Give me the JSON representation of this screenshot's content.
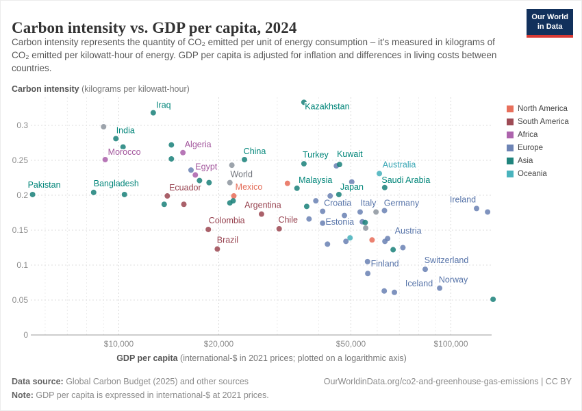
{
  "header": {
    "title": "Carbon intensity vs. GDP per capita, 2024",
    "subtitle": "Carbon intensity represents the quantity of CO₂ emitted per unit of energy consumption – it’s measured in kilograms of CO₂ emitted per kilowatt-hour of energy. GDP per capita is adjusted for inflation and differences in living costs between countries.",
    "logo": {
      "line1": "Our World",
      "line2": "in Data",
      "bg_color": "#12315c",
      "bar_color": "#d93a34"
    }
  },
  "axes": {
    "y_title_bold": "Carbon intensity",
    "y_title_rest": " (kilograms per kilowatt-hour)",
    "x_title_bold": "GDP per capita",
    "x_title_rest": " (international-$ in 2021 prices; plotted on a logarithmic axis)",
    "y_ticks": [
      {
        "value": 0,
        "label": "0"
      },
      {
        "value": 0.05,
        "label": "0.05"
      },
      {
        "value": 0.1,
        "label": "0.1"
      },
      {
        "value": 0.15,
        "label": "0.15"
      },
      {
        "value": 0.2,
        "label": "0.2"
      },
      {
        "value": 0.25,
        "label": "0.25"
      },
      {
        "value": 0.3,
        "label": "0.3"
      }
    ],
    "x_ticks": [
      {
        "value": 10000,
        "label": "$10,000"
      },
      {
        "value": 20000,
        "label": "$20,000"
      },
      {
        "value": 50000,
        "label": "$50,000"
      },
      {
        "value": 100000,
        "label": "$100,000"
      }
    ],
    "x_minor_ticks": [
      6000,
      7000,
      8000,
      9000,
      30000,
      40000,
      60000,
      70000,
      80000,
      90000
    ]
  },
  "legend": {
    "items": [
      {
        "label": "North America",
        "color": "#e8705c"
      },
      {
        "label": "South America",
        "color": "#9e4b55"
      },
      {
        "label": "Africa",
        "color": "#ad64ad"
      },
      {
        "label": "Europe",
        "color": "#6d84b5"
      },
      {
        "label": "Asia",
        "color": "#20847d"
      },
      {
        "label": "Oceania",
        "color": "#49b3bd"
      }
    ]
  },
  "chart_data": {
    "type": "scatter",
    "title": "Carbon intensity vs. GDP per capita, 2024",
    "xlabel": "GDP per capita (international-$ in 2021 prices; plotted on a logarithmic axis)",
    "ylabel": "Carbon intensity (kilograms per kilowatt-hour)",
    "x_scale": "log",
    "xlim": [
      5000,
      140000
    ],
    "ylim": [
      0,
      0.34
    ],
    "grid": true,
    "legend_position": "right",
    "series": [
      {
        "name": "World",
        "color": "#9097a0",
        "label_color": "#6e7179",
        "points": [
          {
            "gdp": 21600,
            "ci": 0.218,
            "label": "World",
            "dx": 17,
            "dy": -8
          },
          {
            "gdp": 9000,
            "ci": 0.298
          },
          {
            "gdp": 21900,
            "ci": 0.243
          },
          {
            "gdp": 59500,
            "ci": 0.176
          },
          {
            "gdp": 55400,
            "ci": 0.153
          }
        ]
      },
      {
        "name": "Africa",
        "color": "#ad64ad",
        "label_color": "#a2559c",
        "points": [
          {
            "gdp": 9100,
            "ci": 0.251,
            "label": "Morocco",
            "dx": 28,
            "dy": -7
          },
          {
            "gdp": 15600,
            "ci": 0.261,
            "label": "Algeria",
            "dx": 22,
            "dy": -8
          },
          {
            "gdp": 17000,
            "ci": 0.229,
            "label": "Egypt",
            "dx": 16,
            "dy": -8
          }
        ]
      },
      {
        "name": "South America",
        "color": "#9e4b55",
        "label_color": "#96414e",
        "points": [
          {
            "gdp": 14000,
            "ci": 0.199,
            "label": "Ecuador",
            "dx": 26,
            "dy": -8
          },
          {
            "gdp": 18600,
            "ci": 0.151,
            "label": "Colombia",
            "dx": 27,
            "dy": -9
          },
          {
            "gdp": 19800,
            "ci": 0.123,
            "label": "Brazil",
            "dx": 15,
            "dy": -9
          },
          {
            "gdp": 26900,
            "ci": 0.173,
            "label": "Argentina",
            "dx": 2,
            "dy": -9
          },
          {
            "gdp": 30400,
            "ci": 0.152,
            "label": "Chile",
            "dx": 13,
            "dy": -9
          },
          {
            "gdp": 15700,
            "ci": 0.187
          }
        ]
      },
      {
        "name": "North America",
        "color": "#e8705c",
        "label_color": "#e56e5a",
        "points": [
          {
            "gdp": 22200,
            "ci": 0.199,
            "label": "Mexico",
            "dx": 22,
            "dy": -9
          },
          {
            "gdp": 32200,
            "ci": 0.217
          },
          {
            "gdp": 57900,
            "ci": 0.136
          }
        ]
      },
      {
        "name": "Europe",
        "color": "#6d84b5",
        "label_color": "#5673a8",
        "points": [
          {
            "gdp": 41100,
            "ci": 0.177,
            "label": "Croatia",
            "dx": 22,
            "dy": -8
          },
          {
            "gdp": 53300,
            "ci": 0.176,
            "label": "Italy",
            "dx": 12,
            "dy": -9
          },
          {
            "gdp": 63100,
            "ci": 0.178,
            "label": "Germany",
            "dx": 25,
            "dy": -7
          },
          {
            "gdp": 41100,
            "ci": 0.16,
            "label": "Estonia",
            "dx": 25,
            "dy": 2
          },
          {
            "gdp": 64500,
            "ci": 0.138,
            "label": "Austria",
            "dx": 30,
            "dy": -7
          },
          {
            "gdp": 119500,
            "ci": 0.181,
            "label": "Ireland",
            "dx": -20,
            "dy": -9
          },
          {
            "gdp": 83700,
            "ci": 0.094,
            "label": "Switzerland",
            "dx": 31,
            "dy": -9
          },
          {
            "gdp": 92500,
            "ci": 0.067,
            "label": "Norway",
            "dx": 20,
            "dy": -8
          },
          {
            "gdp": 56200,
            "ci": 0.088,
            "label": "Finland",
            "dx": 25,
            "dy": -10
          },
          {
            "gdp": 67600,
            "ci": 0.061,
            "label": "Iceland",
            "dx": 36,
            "dy": -9
          },
          {
            "gdp": 16500,
            "ci": 0.236
          },
          {
            "gdp": 45200,
            "ci": 0.242
          },
          {
            "gdp": 50300,
            "ci": 0.219
          },
          {
            "gdp": 39200,
            "ci": 0.192
          },
          {
            "gdp": 43300,
            "ci": 0.199
          },
          {
            "gdp": 33000,
            "ci": 0.167
          },
          {
            "gdp": 37400,
            "ci": 0.166
          },
          {
            "gdp": 47800,
            "ci": 0.171
          },
          {
            "gdp": 54100,
            "ci": 0.162
          },
          {
            "gdp": 42500,
            "ci": 0.13
          },
          {
            "gdp": 48300,
            "ci": 0.134
          },
          {
            "gdp": 63300,
            "ci": 0.134
          },
          {
            "gdp": 56100,
            "ci": 0.105
          },
          {
            "gdp": 71700,
            "ci": 0.125
          },
          {
            "gdp": 63000,
            "ci": 0.063
          },
          {
            "gdp": 129000,
            "ci": 0.176
          }
        ]
      },
      {
        "name": "Asia",
        "color": "#20847d",
        "label_color": "#008579",
        "points": [
          {
            "gdp": 5500,
            "ci": 0.201,
            "label": "Pakistan",
            "dx": 17,
            "dy": -10
          },
          {
            "gdp": 8400,
            "ci": 0.204,
            "label": "Bangladesh",
            "dx": 33,
            "dy": -9
          },
          {
            "gdp": 9800,
            "ci": 0.281,
            "label": "India",
            "dx": 14,
            "dy": -8
          },
          {
            "gdp": 12700,
            "ci": 0.318,
            "label": "Iraq",
            "dx": 15,
            "dy": -7
          },
          {
            "gdp": 23900,
            "ci": 0.251,
            "label": "China",
            "dx": 15,
            "dy": -8
          },
          {
            "gdp": 36100,
            "ci": 0.333,
            "label": "Kazakhstan",
            "dx": 34,
            "dy": 10
          },
          {
            "gdp": 36100,
            "ci": 0.245,
            "label": "Turkey",
            "dx": 17,
            "dy": -9
          },
          {
            "gdp": 46200,
            "ci": 0.244,
            "label": "Kuwait",
            "dx": 15,
            "dy": -11
          },
          {
            "gdp": 34400,
            "ci": 0.21,
            "label": "Malaysia",
            "dx": 27,
            "dy": -8
          },
          {
            "gdp": 46000,
            "ci": 0.201,
            "label": "Japan",
            "dx": 19,
            "dy": -7
          },
          {
            "gdp": 63200,
            "ci": 0.211,
            "label": "Saudi Arabia",
            "dx": 31,
            "dy": -7
          },
          {
            "gdp": 10300,
            "ci": 0.269
          },
          {
            "gdp": 14400,
            "ci": 0.272
          },
          {
            "gdp": 14400,
            "ci": 0.252
          },
          {
            "gdp": 17500,
            "ci": 0.221
          },
          {
            "gdp": 18700,
            "ci": 0.218
          },
          {
            "gdp": 10400,
            "ci": 0.201
          },
          {
            "gdp": 13700,
            "ci": 0.187
          },
          {
            "gdp": 21600,
            "ci": 0.189
          },
          {
            "gdp": 22100,
            "ci": 0.192
          },
          {
            "gdp": 36800,
            "ci": 0.184
          },
          {
            "gdp": 55200,
            "ci": 0.161
          },
          {
            "gdp": 67000,
            "ci": 0.122
          },
          {
            "gdp": 134000,
            "ci": 0.051
          }
        ]
      },
      {
        "name": "Oceania",
        "color": "#49b3bd",
        "label_color": "#3aa7b5",
        "points": [
          {
            "gdp": 60900,
            "ci": 0.231,
            "label": "Australia",
            "dx": 29,
            "dy": -9
          },
          {
            "gdp": 49700,
            "ci": 0.139
          }
        ]
      }
    ]
  },
  "footer": {
    "source_bold": "Data source:",
    "source_rest": " Global Carbon Budget (2025) and other sources",
    "note_bold": "Note:",
    "note_rest": " GDP per capita is expressed in international-$ at 2021 prices.",
    "right_text": "OurWorldinData.org/co2-and-greenhouse-gas-emissions | CC BY"
  }
}
